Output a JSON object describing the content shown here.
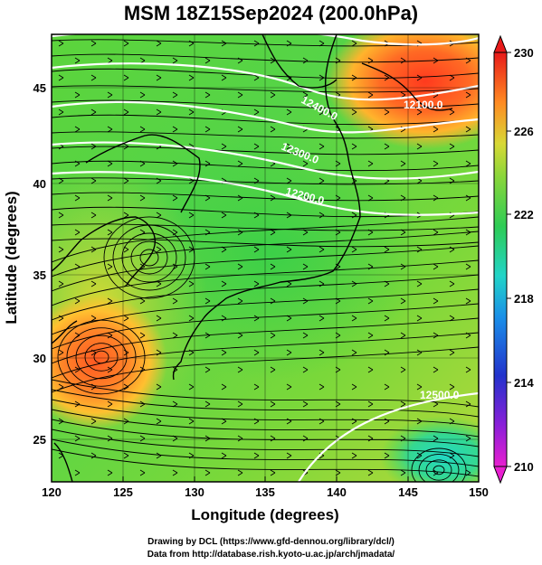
{
  "title": "MSM 18Z15Sep2024 (200.0hPa)",
  "xaxis": {
    "label": "Longitude (degrees)",
    "ticks": [
      "120",
      "125",
      "130",
      "135",
      "140",
      "145",
      "150"
    ]
  },
  "yaxis": {
    "label": "Latitude (degrees)",
    "ticks": [
      "25",
      "30",
      "35",
      "40",
      "45"
    ]
  },
  "colorbar": {
    "min": 210,
    "max": 230,
    "ticks": [
      "230",
      "226",
      "222",
      "218",
      "214",
      "210"
    ]
  },
  "contour_labels": [
    "12400.0",
    "12300.0",
    "12200.0",
    "12100.0",
    "12500.0"
  ],
  "credits": {
    "line1": "Drawing by DCL (https://www.gfd-dennou.org/library/dcl/)",
    "line2": "Data from http://database.rish.kyoto-u.ac.jp/arch/jmadata/"
  },
  "colors": {
    "field_base": "#44d44a",
    "warm": "#ff5a22",
    "cool": "#22d4c0",
    "contour": "#ffffff",
    "coast": "#000000"
  }
}
